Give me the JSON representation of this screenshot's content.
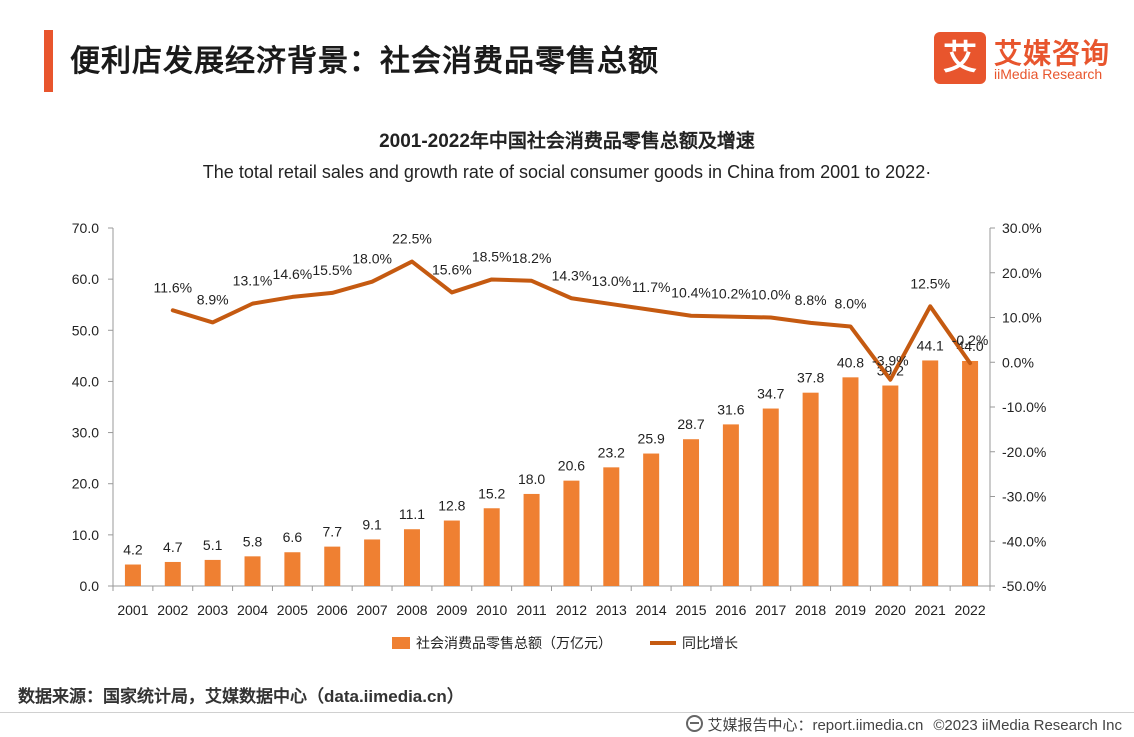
{
  "header": {
    "title": "便利店发展经济背景：社会消费品零售总额",
    "logo_mark": "艾",
    "logo_cn": "艾媒咨询",
    "logo_en": "iiMedia Research"
  },
  "chart_data": {
    "type": "bar+line",
    "title": "2001-2022年中国社会消费品零售总额及增速",
    "subtitle": "The total retail sales and growth rate of social consumer goods  in China from 2001 to 2022·",
    "categories": [
      "2001",
      "2002",
      "2003",
      "2004",
      "2005",
      "2006",
      "2007",
      "2008",
      "2009",
      "2010",
      "2011",
      "2012",
      "2013",
      "2014",
      "2015",
      "2016",
      "2017",
      "2018",
      "2019",
      "2020",
      "2021",
      "2022"
    ],
    "series": [
      {
        "name": "社会消费品零售总额（万亿元）",
        "type": "bar",
        "axis": "left",
        "color": "#ef8032",
        "values": [
          4.2,
          4.7,
          5.1,
          5.8,
          6.6,
          7.7,
          9.1,
          11.1,
          12.8,
          15.2,
          18.0,
          20.6,
          23.2,
          25.9,
          28.7,
          31.6,
          34.7,
          37.8,
          40.8,
          39.2,
          44.1,
          44.0
        ],
        "labels": [
          "4.2",
          "4.7",
          "5.1",
          "5.8",
          "6.6",
          "7.7",
          "9.1",
          "11.1",
          "12.8",
          "15.2",
          "18.0",
          "20.6",
          "23.2",
          "25.9",
          "28.7",
          "31.6",
          "34.7",
          "37.8",
          "40.8",
          "39.2",
          "44.1",
          "44.0"
        ]
      },
      {
        "name": "同比增长",
        "type": "line",
        "axis": "right",
        "color": "#c55a11",
        "values": [
          null,
          11.6,
          8.9,
          13.1,
          14.6,
          15.5,
          18.0,
          22.5,
          15.6,
          18.5,
          18.2,
          14.3,
          13.0,
          11.7,
          10.4,
          10.2,
          10.0,
          8.8,
          8.0,
          -3.9,
          12.5,
          -0.2
        ],
        "labels": [
          "",
          "11.6%",
          "8.9%",
          "13.1%",
          "14.6%",
          "15.5%",
          "18.0%",
          "22.5%",
          "15.6%",
          "18.5%",
          "18.2%",
          "14.3%",
          "13.0%",
          "11.7%",
          "10.4%",
          "10.2%",
          "10.0%",
          "8.8%",
          "8.0%",
          "-3.9%",
          "12.5%",
          "-0.2%"
        ]
      }
    ],
    "y_left": {
      "min": 0,
      "max": 70,
      "ticks": [
        "0.0",
        "10.0",
        "20.0",
        "30.0",
        "40.0",
        "50.0",
        "60.0",
        "70.0"
      ]
    },
    "y_right": {
      "min": -50,
      "max": 30,
      "ticks": [
        "-50.0%",
        "-40.0%",
        "-30.0%",
        "-20.0%",
        "-10.0%",
        "0.0%",
        "10.0%",
        "20.0%",
        "30.0%"
      ]
    },
    "legend_position": "bottom",
    "grid": false
  },
  "footer": {
    "source": "数据来源：国家统计局，艾媒数据中心（data.iimedia.cn）",
    "report_center": "艾媒报告中心：report.iimedia.cn",
    "copyright": "©2023  iiMedia Research  Inc"
  }
}
